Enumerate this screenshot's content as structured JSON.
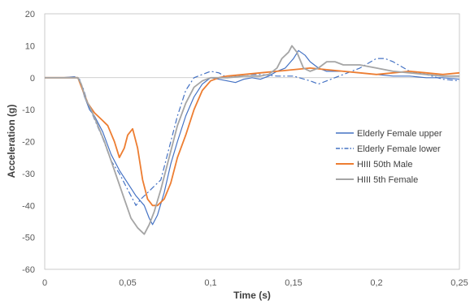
{
  "chart_data": {
    "type": "line",
    "xlabel": "Time (s)",
    "ylabel": "Acceleration (g)",
    "xlim": [
      0,
      0.25
    ],
    "ylim": [
      -60,
      20
    ],
    "x_ticks": [
      "0",
      "0,05",
      "0,1",
      "0,15",
      "0,2",
      "0,25"
    ],
    "y_ticks": [
      "20",
      "10",
      "0",
      "-10",
      "-20",
      "-30",
      "-40",
      "-50",
      "-60"
    ],
    "legend_position": "right",
    "grid": false,
    "series": [
      {
        "name": "Elderly Female upper",
        "color": "#4472C4",
        "dash": "solid",
        "points": [
          [
            0,
            0
          ],
          [
            0.01,
            0
          ],
          [
            0.018,
            0.3
          ],
          [
            0.021,
            -0.5
          ],
          [
            0.024,
            -6
          ],
          [
            0.027,
            -10
          ],
          [
            0.03,
            -12
          ],
          [
            0.035,
            -17
          ],
          [
            0.04,
            -24
          ],
          [
            0.045,
            -29
          ],
          [
            0.05,
            -33
          ],
          [
            0.055,
            -37
          ],
          [
            0.06,
            -40
          ],
          [
            0.063,
            -44
          ],
          [
            0.065,
            -46
          ],
          [
            0.068,
            -43
          ],
          [
            0.072,
            -36
          ],
          [
            0.076,
            -27
          ],
          [
            0.08,
            -20
          ],
          [
            0.085,
            -12
          ],
          [
            0.09,
            -6
          ],
          [
            0.095,
            -2
          ],
          [
            0.1,
            0
          ],
          [
            0.105,
            -0.5
          ],
          [
            0.11,
            -1
          ],
          [
            0.115,
            -1.5
          ],
          [
            0.12,
            -0.5
          ],
          [
            0.125,
            0
          ],
          [
            0.13,
            -0.5
          ],
          [
            0.135,
            0.5
          ],
          [
            0.14,
            2
          ],
          [
            0.145,
            3
          ],
          [
            0.15,
            6
          ],
          [
            0.153,
            8.5
          ],
          [
            0.157,
            7
          ],
          [
            0.16,
            5
          ],
          [
            0.165,
            3
          ],
          [
            0.17,
            2
          ],
          [
            0.18,
            2
          ],
          [
            0.19,
            1.5
          ],
          [
            0.2,
            1
          ],
          [
            0.21,
            0.5
          ],
          [
            0.22,
            0.5
          ],
          [
            0.23,
            0
          ],
          [
            0.24,
            0
          ],
          [
            0.25,
            -0.5
          ]
        ]
      },
      {
        "name": "Elderly Female lower",
        "color": "#4472C4",
        "dash": "dashdot",
        "points": [
          [
            0,
            0
          ],
          [
            0.015,
            0
          ],
          [
            0.02,
            0
          ],
          [
            0.023,
            -3
          ],
          [
            0.026,
            -8
          ],
          [
            0.03,
            -13
          ],
          [
            0.035,
            -19
          ],
          [
            0.04,
            -26
          ],
          [
            0.045,
            -30
          ],
          [
            0.05,
            -35
          ],
          [
            0.055,
            -40
          ],
          [
            0.058,
            -38
          ],
          [
            0.062,
            -36
          ],
          [
            0.066,
            -34
          ],
          [
            0.07,
            -32
          ],
          [
            0.075,
            -22
          ],
          [
            0.08,
            -12
          ],
          [
            0.085,
            -4
          ],
          [
            0.09,
            0
          ],
          [
            0.095,
            1
          ],
          [
            0.1,
            2
          ],
          [
            0.105,
            1.5
          ],
          [
            0.11,
            0
          ],
          [
            0.12,
            1
          ],
          [
            0.13,
            1
          ],
          [
            0.14,
            0.5
          ],
          [
            0.15,
            0.5
          ],
          [
            0.16,
            -1
          ],
          [
            0.165,
            -2
          ],
          [
            0.17,
            -1
          ],
          [
            0.18,
            1
          ],
          [
            0.19,
            3
          ],
          [
            0.2,
            6
          ],
          [
            0.205,
            6
          ],
          [
            0.21,
            5
          ],
          [
            0.22,
            2
          ],
          [
            0.23,
            1
          ],
          [
            0.24,
            -0.5
          ],
          [
            0.25,
            -1
          ]
        ]
      },
      {
        "name": "HIII 50th Male",
        "color": "#ED7D31",
        "dash": "solid",
        "points": [
          [
            0,
            0
          ],
          [
            0.01,
            0
          ],
          [
            0.02,
            0
          ],
          [
            0.023,
            -4
          ],
          [
            0.026,
            -8
          ],
          [
            0.03,
            -11
          ],
          [
            0.034,
            -13
          ],
          [
            0.038,
            -15
          ],
          [
            0.042,
            -20
          ],
          [
            0.045,
            -25
          ],
          [
            0.048,
            -22
          ],
          [
            0.05,
            -18
          ],
          [
            0.053,
            -16
          ],
          [
            0.056,
            -22
          ],
          [
            0.059,
            -32
          ],
          [
            0.062,
            -38
          ],
          [
            0.065,
            -40
          ],
          [
            0.068,
            -40
          ],
          [
            0.072,
            -38
          ],
          [
            0.076,
            -33
          ],
          [
            0.08,
            -25
          ],
          [
            0.085,
            -18
          ],
          [
            0.09,
            -10
          ],
          [
            0.095,
            -4
          ],
          [
            0.1,
            -1
          ],
          [
            0.105,
            0
          ],
          [
            0.11,
            0.5
          ],
          [
            0.12,
            1
          ],
          [
            0.13,
            1.5
          ],
          [
            0.14,
            2
          ],
          [
            0.15,
            2.5
          ],
          [
            0.16,
            3
          ],
          [
            0.17,
            2.5
          ],
          [
            0.18,
            2
          ],
          [
            0.19,
            1.5
          ],
          [
            0.2,
            1
          ],
          [
            0.21,
            1.5
          ],
          [
            0.22,
            2
          ],
          [
            0.23,
            1.5
          ],
          [
            0.24,
            1
          ],
          [
            0.25,
            1.5
          ]
        ]
      },
      {
        "name": "HIII 5th Female",
        "color": "#A5A5A5",
        "dash": "solid",
        "points": [
          [
            0,
            0
          ],
          [
            0.01,
            0
          ],
          [
            0.02,
            0
          ],
          [
            0.022,
            -2
          ],
          [
            0.025,
            -7
          ],
          [
            0.028,
            -10
          ],
          [
            0.032,
            -15
          ],
          [
            0.036,
            -20
          ],
          [
            0.04,
            -26
          ],
          [
            0.044,
            -32
          ],
          [
            0.048,
            -38
          ],
          [
            0.052,
            -44
          ],
          [
            0.056,
            -47
          ],
          [
            0.06,
            -49
          ],
          [
            0.063,
            -46
          ],
          [
            0.066,
            -42
          ],
          [
            0.07,
            -35
          ],
          [
            0.075,
            -25
          ],
          [
            0.08,
            -15
          ],
          [
            0.085,
            -8
          ],
          [
            0.09,
            -3
          ],
          [
            0.095,
            -1
          ],
          [
            0.1,
            0
          ],
          [
            0.11,
            0
          ],
          [
            0.12,
            0.5
          ],
          [
            0.13,
            0.5
          ],
          [
            0.135,
            1
          ],
          [
            0.14,
            3
          ],
          [
            0.143,
            6
          ],
          [
            0.147,
            8
          ],
          [
            0.149,
            10
          ],
          [
            0.152,
            8
          ],
          [
            0.156,
            3
          ],
          [
            0.16,
            2
          ],
          [
            0.165,
            3
          ],
          [
            0.17,
            5
          ],
          [
            0.175,
            5
          ],
          [
            0.18,
            4
          ],
          [
            0.19,
            4
          ],
          [
            0.2,
            3
          ],
          [
            0.21,
            2
          ],
          [
            0.22,
            1.5
          ],
          [
            0.23,
            1
          ],
          [
            0.24,
            0.5
          ],
          [
            0.25,
            0.5
          ]
        ]
      }
    ]
  }
}
